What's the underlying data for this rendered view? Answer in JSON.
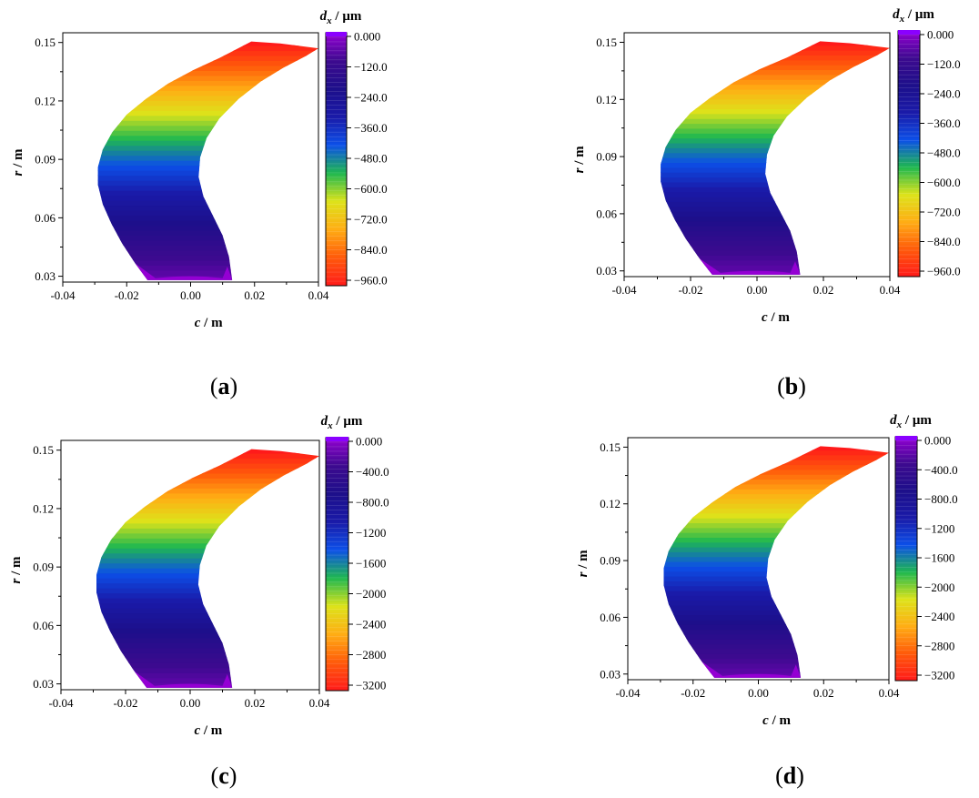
{
  "chart_data": [
    {
      "type": "heatmap",
      "caption_letter": "a",
      "xlabel_var": "c",
      "xlabel_unit": "m",
      "ylabel_var": "r",
      "ylabel_unit": "m",
      "xlim": [
        -0.04,
        0.04
      ],
      "ylim": [
        0.027,
        0.155
      ],
      "x_ticks": [
        "-0.04",
        "-0.02",
        "0.00",
        "0.02",
        "0.04"
      ],
      "y_ticks": [
        "0.15",
        "0.12",
        "0.09",
        "0.06",
        "0.03"
      ],
      "colorbar": {
        "title_var": "d",
        "title_sub": "x",
        "title_unit": "μm",
        "range": [
          -960,
          0
        ],
        "tick_values": [
          0,
          -120,
          -240,
          -360,
          -480,
          -600,
          -720,
          -840,
          -960
        ],
        "tick_labels": [
          "0.000",
          "−120.0",
          "−240.0",
          "−360.0",
          "−480.0",
          "−600.0",
          "−720.0",
          "−840.0",
          "−960.0"
        ],
        "colors": [
          "#9400d3",
          "#3d0a8f",
          "#1d0f8a",
          "#1a1aa8",
          "#0c4fe8",
          "#1fb84f",
          "#dde31a",
          "#ffad14",
          "#ff5a0a",
          "#ff1a1a"
        ]
      }
    },
    {
      "type": "heatmap",
      "caption_letter": "b",
      "xlabel_var": "c",
      "xlabel_unit": "m",
      "ylabel_var": "r",
      "ylabel_unit": "m",
      "xlim": [
        -0.04,
        0.04
      ],
      "ylim": [
        0.027,
        0.155
      ],
      "x_ticks": [
        "-0.04",
        "-0.02",
        "0.00",
        "0.02",
        "0.04"
      ],
      "y_ticks": [
        "0.15",
        "0.12",
        "0.09",
        "0.06",
        "0.03"
      ],
      "colorbar": {
        "title_var": "d",
        "title_sub": "x",
        "title_unit": "μm",
        "range": [
          -960,
          0
        ],
        "tick_values": [
          0,
          -120,
          -240,
          -360,
          -480,
          -600,
          -720,
          -840,
          -960
        ],
        "tick_labels": [
          "0.000",
          "−120.0",
          "−240.0",
          "−360.0",
          "−480.0",
          "−600.0",
          "−720.0",
          "−840.0",
          "−960.0"
        ],
        "colors": [
          "#9400d3",
          "#3d0a8f",
          "#1d0f8a",
          "#1a1aa8",
          "#0c4fe8",
          "#1fb84f",
          "#dde31a",
          "#ffad14",
          "#ff5a0a",
          "#ff1a1a"
        ]
      }
    },
    {
      "type": "heatmap",
      "caption_letter": "c",
      "xlabel_var": "c",
      "xlabel_unit": "m",
      "ylabel_var": "r",
      "ylabel_unit": "m",
      "xlim": [
        -0.04,
        0.04
      ],
      "ylim": [
        0.027,
        0.155
      ],
      "x_ticks": [
        "-0.04",
        "-0.02",
        "0.00",
        "0.02",
        "0.04"
      ],
      "y_ticks": [
        "0.15",
        "0.12",
        "0.09",
        "0.06",
        "0.03"
      ],
      "colorbar": {
        "title_var": "d",
        "title_sub": "x",
        "title_unit": "μm",
        "range": [
          -3200,
          0
        ],
        "tick_values": [
          0,
          -400,
          -800,
          -1200,
          -1600,
          -2000,
          -2400,
          -2800,
          -3200
        ],
        "tick_labels": [
          "0.000",
          "−400.0",
          "−800.0",
          "−1200",
          "−1600",
          "−2000",
          "−2400",
          "−2800",
          "−3200"
        ],
        "colors": [
          "#9400d3",
          "#3d0a8f",
          "#1d0f8a",
          "#1a1aa8",
          "#0c4fe8",
          "#1fb84f",
          "#dde31a",
          "#ffad14",
          "#ff5a0a",
          "#ff1a1a"
        ]
      }
    },
    {
      "type": "heatmap",
      "caption_letter": "d",
      "xlabel_var": "c",
      "xlabel_unit": "m",
      "ylabel_var": "r",
      "ylabel_unit": "m",
      "xlim": [
        -0.04,
        0.04
      ],
      "ylim": [
        0.027,
        0.155
      ],
      "x_ticks": [
        "-0.04",
        "-0.02",
        "0.00",
        "0.02",
        "0.04"
      ],
      "y_ticks": [
        "0.15",
        "0.12",
        "0.09",
        "0.06",
        "0.03"
      ],
      "colorbar": {
        "title_var": "d",
        "title_sub": "x",
        "title_unit": "μm",
        "range": [
          -3200,
          0
        ],
        "tick_values": [
          0,
          -400,
          -800,
          -1200,
          -1600,
          -2000,
          -2400,
          -2800,
          -3200
        ],
        "tick_labels": [
          "0.000",
          "−400.0",
          "−800.0",
          "−1200",
          "−1600",
          "−2000",
          "−2400",
          "−2800",
          "−3200"
        ],
        "colors": [
          "#9400d3",
          "#3d0a8f",
          "#1d0f8a",
          "#1a1aa8",
          "#0c4fe8",
          "#1fb84f",
          "#dde31a",
          "#ffad14",
          "#ff5a0a",
          "#ff1a1a"
        ]
      }
    }
  ]
}
